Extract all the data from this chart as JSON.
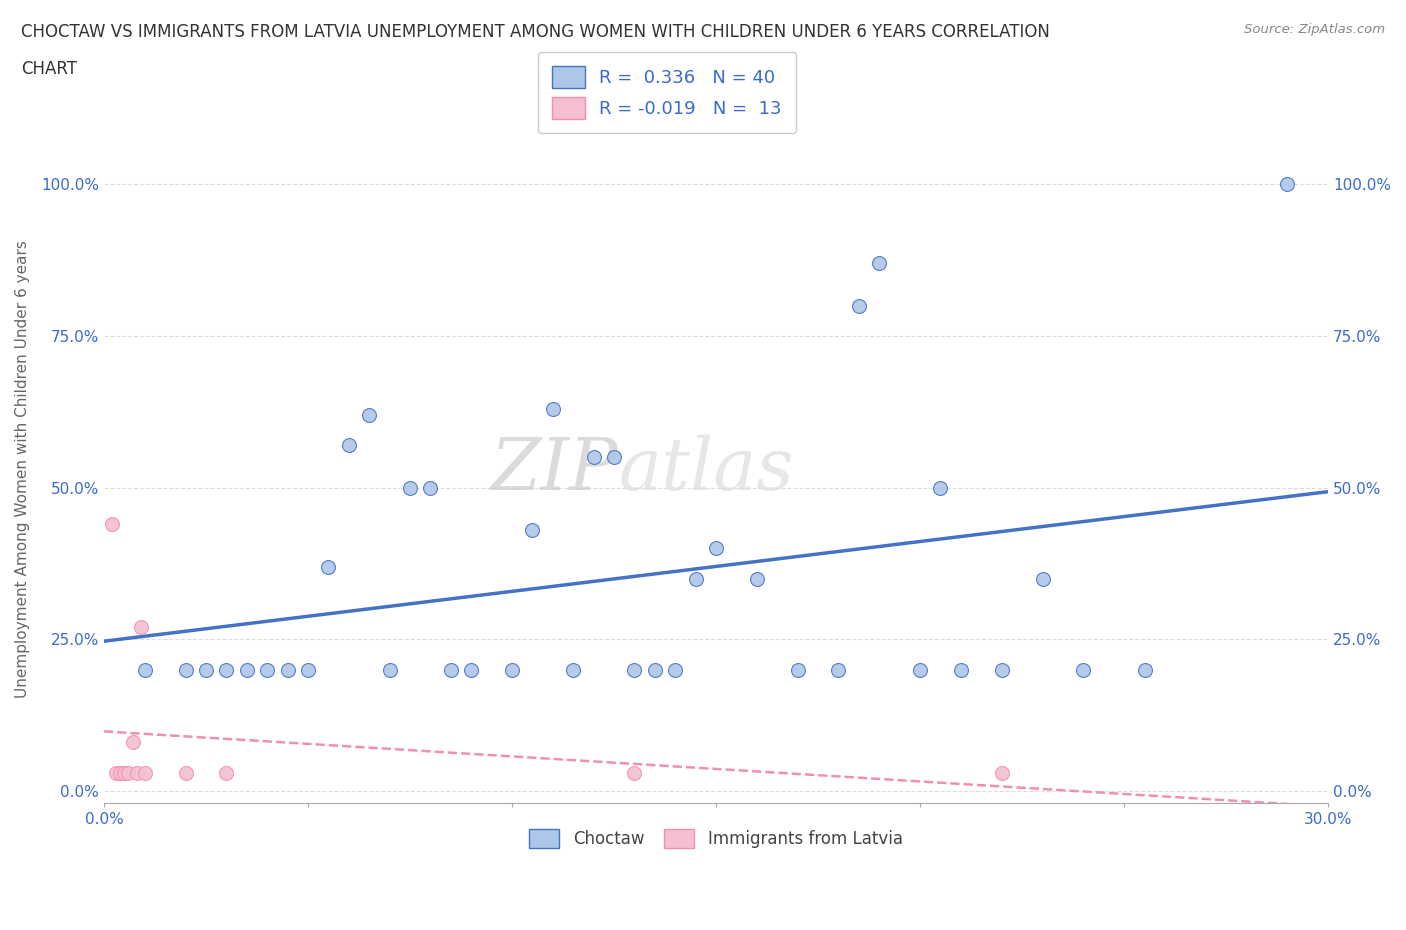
{
  "title_line1": "CHOCTAW VS IMMIGRANTS FROM LATVIA UNEMPLOYMENT AMONG WOMEN WITH CHILDREN UNDER 6 YEARS CORRELATION",
  "title_line2": "CHART",
  "source_text": "Source: ZipAtlas.com",
  "ylabel": "Unemployment Among Women with Children Under 6 years",
  "xlim": [
    0.0,
    0.3
  ],
  "ylim": [
    -0.02,
    1.08
  ],
  "yticks": [
    0.0,
    0.25,
    0.5,
    0.75,
    1.0
  ],
  "ytick_labels": [
    "0.0%",
    "25.0%",
    "50.0%",
    "75.0%",
    "100.0%"
  ],
  "xtick_labels": [
    "0.0%",
    "30.0%"
  ],
  "choctaw_color": "#aec6e8",
  "latvia_color": "#f5bfd0",
  "choctaw_line_color": "#4472c4",
  "latvia_line_color": "#f090b0",
  "choctaw_R": 0.336,
  "choctaw_N": 40,
  "latvia_R": -0.019,
  "latvia_N": 13,
  "watermark_zip": "ZIP",
  "watermark_atlas": "atlas",
  "choctaw_scatter_x": [
    0.01,
    0.02,
    0.025,
    0.03,
    0.035,
    0.04,
    0.045,
    0.05,
    0.055,
    0.06,
    0.065,
    0.07,
    0.075,
    0.08,
    0.085,
    0.09,
    0.1,
    0.105,
    0.11,
    0.115,
    0.12,
    0.125,
    0.13,
    0.135,
    0.14,
    0.145,
    0.15,
    0.16,
    0.17,
    0.18,
    0.185,
    0.19,
    0.2,
    0.205,
    0.21,
    0.22,
    0.23,
    0.24,
    0.255,
    0.29
  ],
  "choctaw_scatter_y": [
    0.2,
    0.2,
    0.2,
    0.2,
    0.2,
    0.2,
    0.2,
    0.2,
    0.37,
    0.57,
    0.62,
    0.2,
    0.5,
    0.5,
    0.2,
    0.2,
    0.2,
    0.43,
    0.63,
    0.2,
    0.55,
    0.55,
    0.2,
    0.2,
    0.2,
    0.35,
    0.4,
    0.35,
    0.2,
    0.2,
    0.8,
    0.87,
    0.2,
    0.5,
    0.2,
    0.2,
    0.35,
    0.2,
    0.2,
    1.0
  ],
  "latvia_scatter_x": [
    0.002,
    0.003,
    0.004,
    0.005,
    0.006,
    0.007,
    0.008,
    0.009,
    0.01,
    0.02,
    0.03,
    0.13,
    0.22
  ],
  "latvia_scatter_y": [
    0.44,
    0.03,
    0.03,
    0.03,
    0.03,
    0.08,
    0.03,
    0.27,
    0.03,
    0.03,
    0.03,
    0.03,
    0.03
  ]
}
